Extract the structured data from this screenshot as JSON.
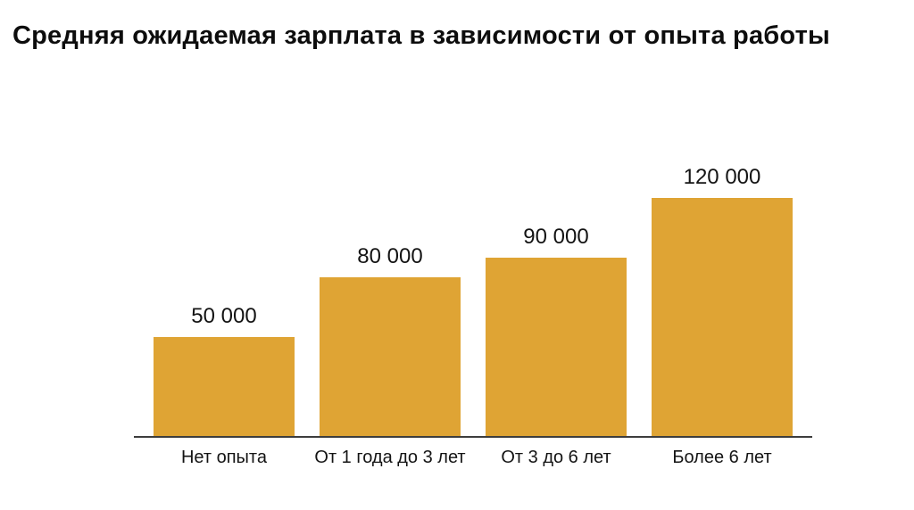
{
  "title": "Средняя ожидаемая зарплата в зависимости от опыта работы",
  "colors": {
    "bar": "#DFA434",
    "axis": "#3d3d3d",
    "text": "#141414",
    "background": "#ffffff"
  },
  "chart_data": {
    "type": "bar",
    "title": "Средняя ожидаемая зарплата в зависимости от опыта работы",
    "categories": [
      "Нет опыта",
      "От 1 года до 3 лет",
      "От 3 до 6 лет",
      "Более 6 лет"
    ],
    "values": [
      50000,
      80000,
      90000,
      120000
    ],
    "value_labels": [
      "50 000",
      "80 000",
      "90 000",
      "120 000"
    ],
    "xlabel": "",
    "ylabel": "",
    "ylim": [
      0,
      130000
    ],
    "grid": false,
    "legend": false,
    "bar_color": "#DFA434"
  }
}
